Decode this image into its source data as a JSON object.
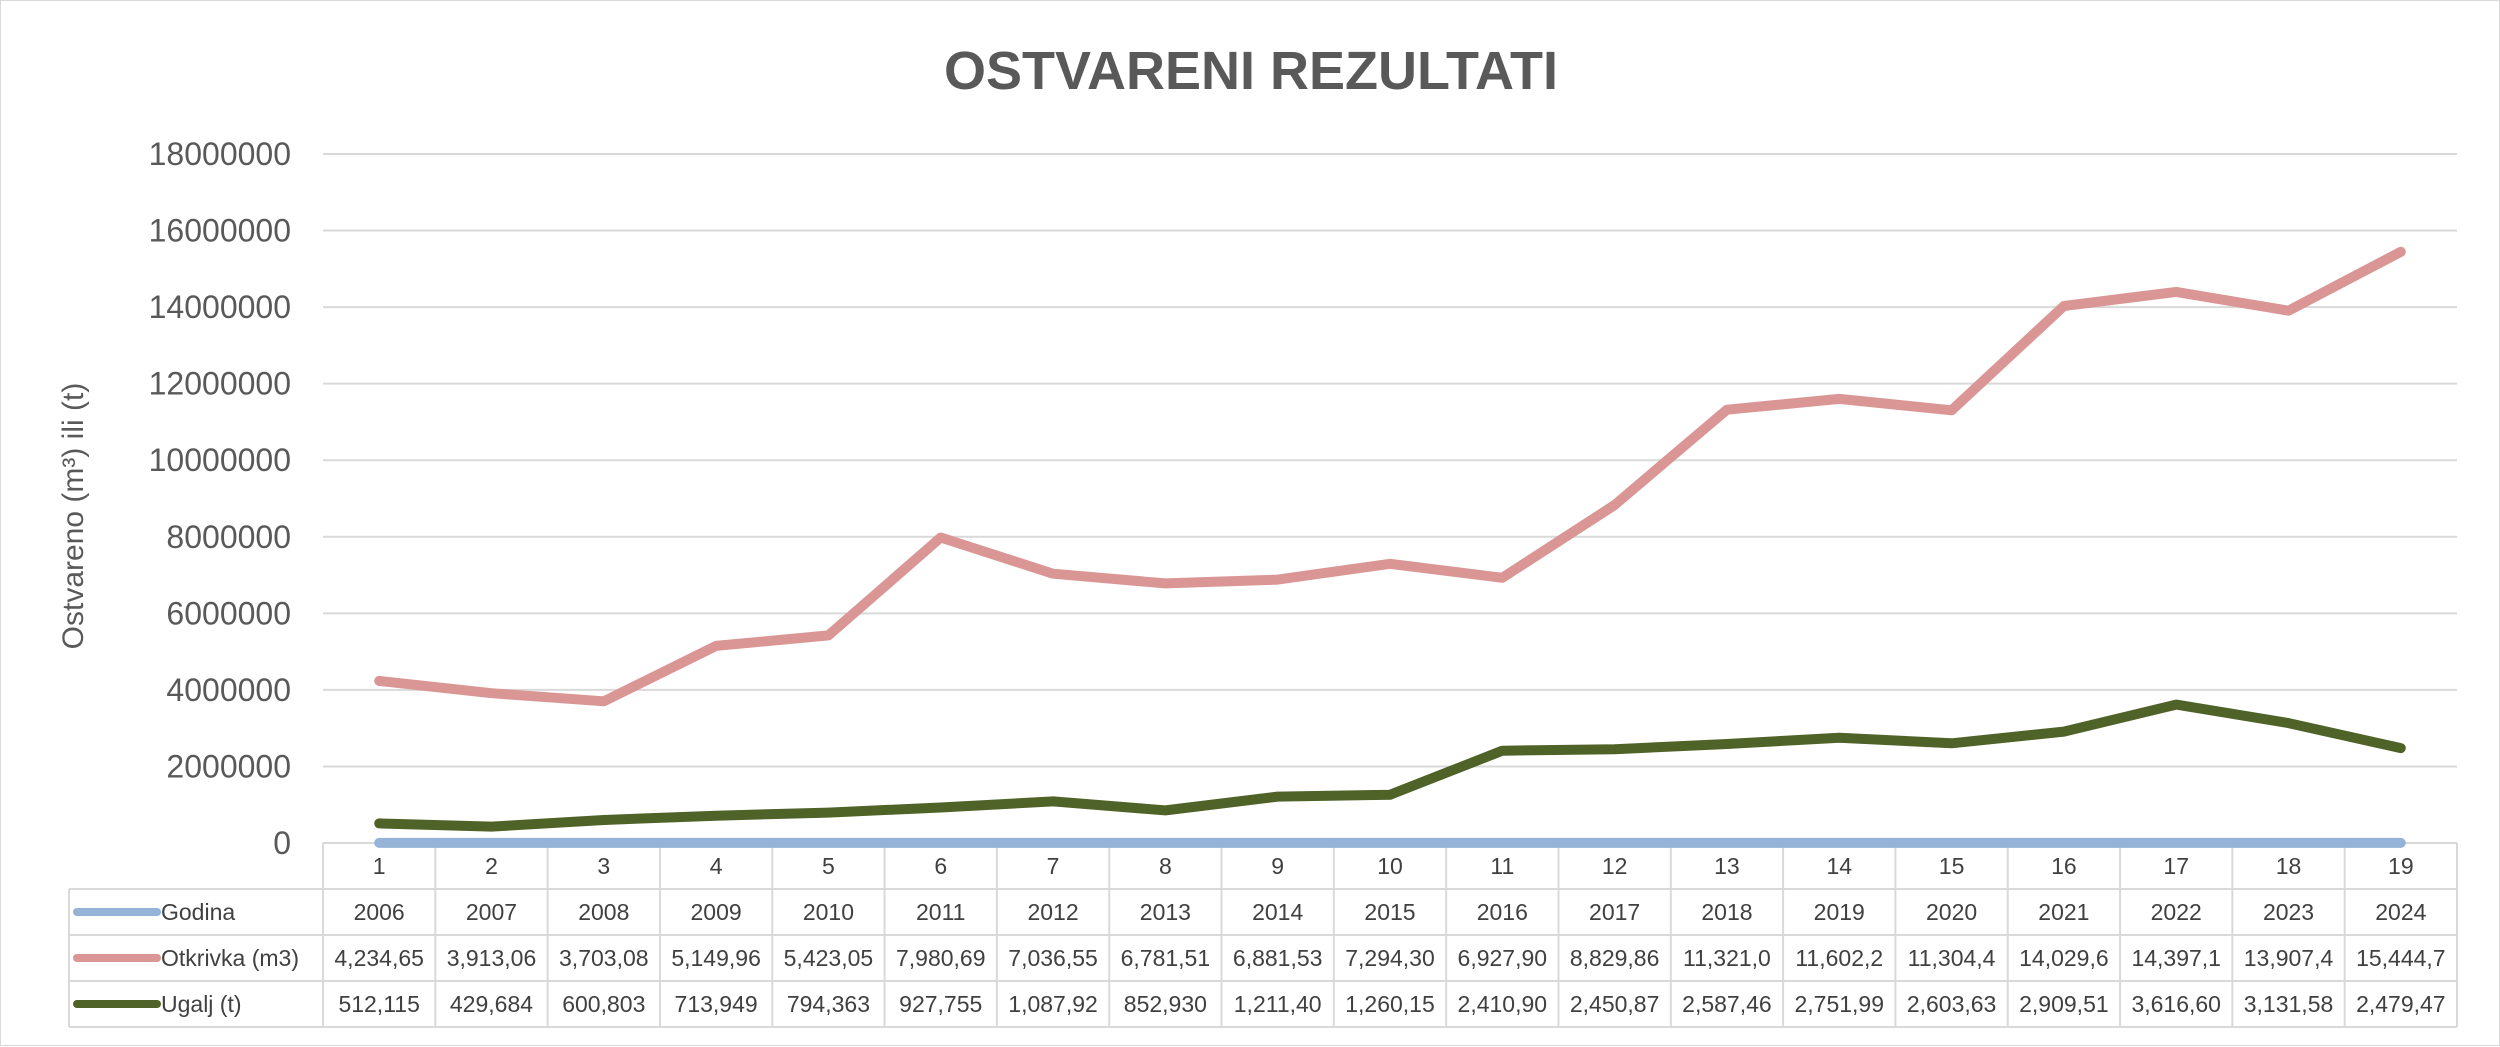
{
  "chart_data": {
    "type": "line",
    "title": "OSTVARENI REZULTATI",
    "ylabel": "Ostvareno (m³) ili (t)",
    "ylim": [
      0,
      18000000
    ],
    "yticks": [
      "0",
      "2000000",
      "4000000",
      "6000000",
      "8000000",
      "10000000",
      "12000000",
      "14000000",
      "16000000",
      "18000000"
    ],
    "categories": [
      "1",
      "2",
      "3",
      "4",
      "5",
      "6",
      "7",
      "8",
      "9",
      "10",
      "11",
      "12",
      "13",
      "14",
      "15",
      "16",
      "17",
      "18",
      "19"
    ],
    "grid": true,
    "legend": "data-table",
    "series": [
      {
        "name": "Godina",
        "color": "#95b3d7",
        "values": [
          2006,
          2007,
          2008,
          2009,
          2010,
          2011,
          2012,
          2013,
          2014,
          2015,
          2016,
          2017,
          2018,
          2019,
          2020,
          2021,
          2022,
          2023,
          2024
        ],
        "table_labels": [
          "2006",
          "2007",
          "2008",
          "2009",
          "2010",
          "2011",
          "2012",
          "2013",
          "2014",
          "2015",
          "2016",
          "2017",
          "2018",
          "2019",
          "2020",
          "2021",
          "2022",
          "2023",
          "2024"
        ]
      },
      {
        "name": "Otkrivka (m3)",
        "color": "#d99694",
        "values": [
          4234650,
          3913060,
          3703080,
          5149960,
          5423050,
          7980690,
          7036550,
          6781510,
          6881530,
          7294300,
          6927900,
          8829860,
          11321000,
          11602200,
          11304400,
          14029600,
          14397100,
          13907400,
          15444700
        ],
        "table_labels": [
          "4,234,65",
          "3,913,06",
          "3,703,08",
          "5,149,96",
          "5,423,05",
          "7,980,69",
          "7,036,55",
          "6,781,51",
          "6,881,53",
          "7,294,30",
          "6,927,90",
          "8,829,86",
          "11,321,0",
          "11,602,2",
          "11,304,4",
          "14,029,6",
          "14,397,1",
          "13,907,4",
          "15,444,7"
        ]
      },
      {
        "name": "Ugalj (t)",
        "color": "#4f6228",
        "values": [
          512115,
          429684,
          600803,
          713949,
          794363,
          927755,
          1087920,
          852930,
          1211400,
          1260150,
          2410900,
          2450870,
          2587460,
          2751990,
          2603630,
          2909510,
          3616600,
          3131580,
          2479470
        ],
        "table_labels": [
          "512,115",
          "429,684",
          "600,803",
          "713,949",
          "794,363",
          "927,755",
          "1,087,92",
          "852,930",
          "1,211,40",
          "1,260,15",
          "2,410,90",
          "2,450,87",
          "2,587,46",
          "2,751,99",
          "2,603,63",
          "2,909,51",
          "3,616,60",
          "3,131,58",
          "2,479,47"
        ]
      }
    ]
  }
}
